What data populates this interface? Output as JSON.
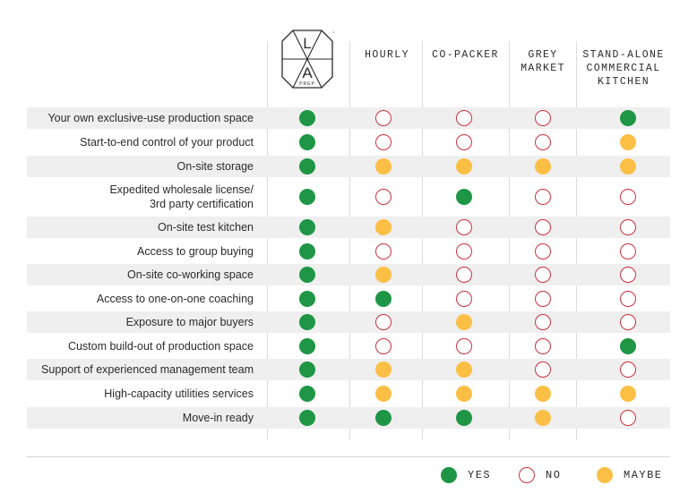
{
  "logo": {
    "letters": [
      "L",
      "A"
    ],
    "tag": "PREP",
    "mark": "™"
  },
  "columns": [
    {
      "id": "laprep",
      "lines": []
    },
    {
      "id": "hourly",
      "lines": [
        "HOURLY"
      ]
    },
    {
      "id": "copacker",
      "lines": [
        "CO-PACKER"
      ]
    },
    {
      "id": "greymarket",
      "lines": [
        "GREY",
        "MARKET"
      ]
    },
    {
      "id": "standalone",
      "lines": [
        "STAND-ALONE",
        "COMMERCIAL",
        "KITCHEN"
      ]
    }
  ],
  "rows": [
    {
      "label": [
        "Your own exclusive-use production space"
      ],
      "values": [
        "yes",
        "no",
        "no",
        "no",
        "yes"
      ]
    },
    {
      "label": [
        "Start-to-end control of your product"
      ],
      "values": [
        "yes",
        "no",
        "no",
        "no",
        "maybe"
      ]
    },
    {
      "label": [
        "On-site storage"
      ],
      "values": [
        "yes",
        "maybe",
        "maybe",
        "maybe",
        "maybe"
      ]
    },
    {
      "label": [
        "Expedited wholesale license/",
        "3rd party certification"
      ],
      "values": [
        "yes",
        "no",
        "yes",
        "no",
        "no"
      ]
    },
    {
      "label": [
        "On-site test kitchen"
      ],
      "values": [
        "yes",
        "maybe",
        "no",
        "no",
        "no"
      ]
    },
    {
      "label": [
        "Access to group buying"
      ],
      "values": [
        "yes",
        "no",
        "no",
        "no",
        "no"
      ]
    },
    {
      "label": [
        "On-site co-working space"
      ],
      "values": [
        "yes",
        "maybe",
        "no",
        "no",
        "no"
      ]
    },
    {
      "label": [
        "Access to one-on-one coaching"
      ],
      "values": [
        "yes",
        "yes",
        "no",
        "no",
        "no"
      ]
    },
    {
      "label": [
        "Exposure to major buyers"
      ],
      "values": [
        "yes",
        "no",
        "maybe",
        "no",
        "no"
      ]
    },
    {
      "label": [
        "Custom build-out of production space"
      ],
      "values": [
        "yes",
        "no",
        "no",
        "no",
        "yes"
      ]
    },
    {
      "label": [
        "Support of experienced management team"
      ],
      "values": [
        "yes",
        "maybe",
        "maybe",
        "no",
        "no"
      ]
    },
    {
      "label": [
        "High-capacity utilities services"
      ],
      "values": [
        "yes",
        "maybe",
        "maybe",
        "maybe",
        "maybe"
      ]
    },
    {
      "label": [
        "Move-in ready"
      ],
      "values": [
        "yes",
        "yes",
        "yes",
        "maybe",
        "no"
      ]
    }
  ],
  "legend": [
    {
      "type": "yes",
      "label": "YES"
    },
    {
      "type": "no",
      "label": "NO"
    },
    {
      "type": "maybe",
      "label": "MAYBE"
    }
  ],
  "colors": {
    "yes": "#1e9645",
    "no": "#c8323c",
    "maybe": "#fbbf45",
    "shade": "#efefef"
  }
}
